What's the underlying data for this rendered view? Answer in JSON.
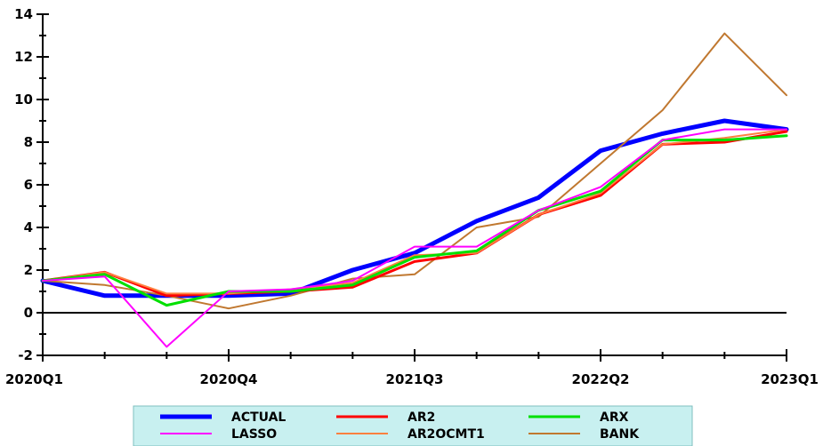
{
  "chart_data": {
    "type": "line",
    "x_labels": [
      "2020Q1",
      "2020Q4",
      "2021Q3",
      "2022Q2",
      "2023Q1"
    ],
    "x": [
      0,
      1,
      2,
      3,
      4,
      5,
      6,
      7,
      8,
      9,
      10,
      11,
      12
    ],
    "ylim": [
      -2,
      14
    ],
    "yticks": [
      -2,
      0,
      2,
      4,
      6,
      8,
      10,
      12,
      14
    ],
    "zero_line": true,
    "legend_position": "bottom-center",
    "legend_background": "#c8f0f0",
    "series": [
      {
        "name": "ACTUAL",
        "color": "#0000ff",
        "width": 5,
        "values": [
          1.5,
          0.8,
          0.8,
          0.8,
          0.9,
          2.0,
          2.8,
          4.3,
          5.4,
          7.6,
          8.4,
          9.0,
          8.6
        ]
      },
      {
        "name": "AR2",
        "color": "#ff0000",
        "width": 3,
        "values": [
          1.5,
          1.9,
          0.8,
          0.9,
          1.0,
          1.2,
          2.4,
          2.8,
          4.6,
          5.5,
          7.9,
          8.0,
          8.5
        ]
      },
      {
        "name": "ARX",
        "color": "#00e000",
        "width": 3,
        "values": [
          1.5,
          1.8,
          0.35,
          1.0,
          1.0,
          1.3,
          2.6,
          2.9,
          4.8,
          5.7,
          8.1,
          8.1,
          8.3
        ]
      },
      {
        "name": "LASSO",
        "color": "#ff00ff",
        "width": 2,
        "values": [
          1.5,
          1.7,
          -1.6,
          1.0,
          1.1,
          1.5,
          3.1,
          3.1,
          4.8,
          5.9,
          8.1,
          8.6,
          8.6
        ]
      },
      {
        "name": "AR2OCMT1",
        "color": "#ff8040",
        "width": 2,
        "values": [
          1.5,
          1.9,
          0.9,
          0.9,
          1.1,
          1.4,
          2.7,
          2.8,
          4.6,
          5.6,
          7.9,
          8.2,
          8.6
        ]
      },
      {
        "name": "BANK",
        "color": "#c07830",
        "width": 2,
        "values": [
          1.5,
          1.3,
          0.8,
          0.2,
          0.8,
          1.6,
          1.8,
          4.0,
          4.5,
          7.0,
          9.5,
          13.1,
          10.2
        ]
      }
    ]
  }
}
